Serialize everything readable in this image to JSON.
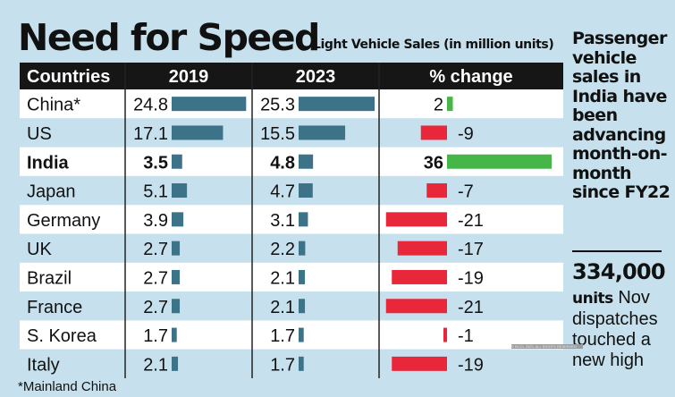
{
  "header": {
    "title": "Need for Speed",
    "subtitle": "Light Vehicle Sales (in million units)"
  },
  "chart_data": {
    "type": "table",
    "columns": [
      "Countries",
      "2019",
      "2023",
      "% change"
    ],
    "rows": [
      {
        "country": "China*",
        "v2019": 24.8,
        "v2023": 25.3,
        "change": 2,
        "highlight": false
      },
      {
        "country": "US",
        "v2019": 17.1,
        "v2023": 15.5,
        "change": -9,
        "highlight": false
      },
      {
        "country": "India",
        "v2019": 3.5,
        "v2023": 4.8,
        "change": 36,
        "highlight": true
      },
      {
        "country": "Japan",
        "v2019": 5.1,
        "v2023": 4.7,
        "change": -7,
        "highlight": false
      },
      {
        "country": "Germany",
        "v2019": 3.9,
        "v2023": 3.1,
        "change": -21,
        "highlight": false
      },
      {
        "country": "UK",
        "v2019": 2.7,
        "v2023": 2.2,
        "change": -17,
        "highlight": false
      },
      {
        "country": "Brazil",
        "v2019": 2.7,
        "v2023": 2.1,
        "change": -19,
        "highlight": false
      },
      {
        "country": "France",
        "v2019": 2.7,
        "v2023": 2.1,
        "change": -21,
        "highlight": false
      },
      {
        "country": "S. Korea",
        "v2019": 1.7,
        "v2023": 1.7,
        "change": -1,
        "highlight": false
      },
      {
        "country": "Italy",
        "v2019": 2.1,
        "v2023": 1.7,
        "change": -19,
        "highlight": false
      }
    ]
  },
  "colors": {
    "header_bg": "#161616",
    "value_bar": "#3d7388",
    "positive_bar": "#47b649",
    "negative_bar": "#e8273b",
    "row_light": "#ffffff",
    "row_tint": "#c6e1ed"
  },
  "side": {
    "text": "Passenger vehicle sales in India have been advancing month-on-month since FY22",
    "stat_number": "334,000",
    "stat_unit": "units",
    "stat_text": "Nov dispatches touched a new high"
  },
  "footnote": "*Mainland China",
  "watermark": "© BCCL 2023. ALL RIGHTS RESERVED"
}
